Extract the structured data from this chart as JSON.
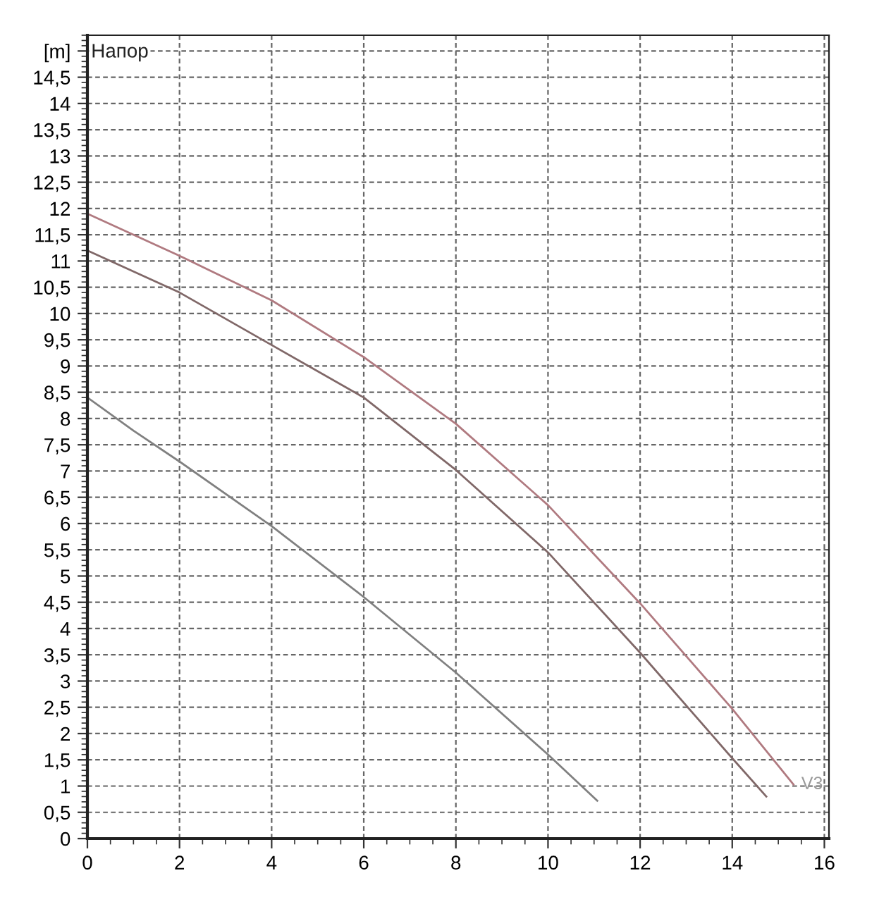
{
  "chart_data": {
    "type": "line",
    "x": [
      0,
      2,
      4,
      6,
      8,
      10,
      12,
      14,
      15.33
    ],
    "series": [
      {
        "color": "#b07a80",
        "values": [
          11.9,
          11.1,
          10.25,
          9.17,
          7.9,
          6.35,
          4.48,
          2.47,
          1.03
        ]
      },
      {
        "color": "#806868",
        "x": [
          0,
          2,
          4,
          6,
          8,
          10,
          12,
          14,
          14.74
        ],
        "values": [
          11.2,
          10.4,
          9.4,
          8.4,
          7.02,
          5.45,
          3.54,
          1.53,
          0.8
        ]
      },
      {
        "color": "#808080",
        "x": [
          0,
          1,
          2,
          4,
          6,
          8,
          10,
          11.07
        ],
        "values": [
          8.4,
          7.77,
          7.18,
          5.95,
          4.6,
          3.16,
          1.6,
          0.72
        ]
      }
    ],
    "annotations": [
      "Напор",
      {
        "text": "V3",
        "x": 15.33,
        "y": 1.03
      }
    ],
    "xlim": [
      0,
      16.1
    ],
    "ylim": [
      0,
      15.3
    ],
    "xticks": [
      0,
      2,
      4,
      6,
      8,
      10,
      12,
      14,
      16
    ],
    "yticks": [
      0,
      {
        "value": 0.5,
        "label": "0,5"
      },
      1,
      {
        "value": 1.5,
        "label": "1,5"
      },
      2,
      {
        "value": 2.5,
        "label": "2,5"
      },
      3,
      {
        "value": 3.5,
        "label": "3,5"
      },
      4,
      {
        "value": 4.5,
        "label": "4,5"
      },
      5,
      {
        "value": 5.5,
        "label": "5,5"
      },
      6,
      {
        "value": 6.5,
        "label": "6,5"
      },
      7,
      {
        "value": 7.5,
        "label": "7,5"
      },
      8,
      {
        "value": 8.5,
        "label": "8,5"
      },
      9,
      {
        "value": 9.5,
        "label": "9,5"
      },
      10,
      {
        "value": 10.5,
        "label": "10,5"
      },
      11,
      {
        "value": 11.5,
        "label": "11,5"
      },
      12,
      {
        "value": 12.5,
        "label": "12,5"
      },
      13,
      {
        "value": 13.5,
        "label": "13,5"
      },
      14,
      {
        "value": 14.5,
        "label": "14,5"
      },
      {
        "value": 15,
        "label": "[m]"
      }
    ],
    "grid": true,
    "legend": false,
    "marker": "none",
    "line_style": "solid"
  }
}
